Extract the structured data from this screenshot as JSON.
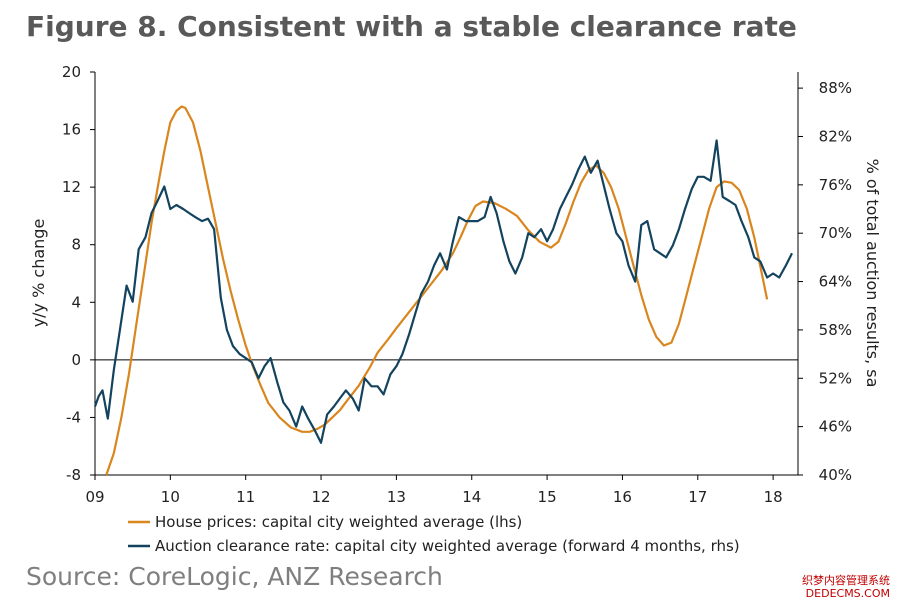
{
  "title": "Figure 8. Consistent with a stable clearance rate",
  "source": "Source: CoreLogic, ANZ Research",
  "watermark": {
    "line1": "织梦内容管理系统",
    "line2": "DEDECMS.COM"
  },
  "colors": {
    "house": "#d9861f",
    "auction": "#13435e",
    "axis": "#000000",
    "title": "#595959"
  },
  "chart_data": {
    "type": "line",
    "xlabel": "",
    "ylabel_left": "y/y % change",
    "ylabel_right": "% of total auction results, sa",
    "ylim_left": [
      -8,
      20
    ],
    "ylim_right": [
      40,
      90
    ],
    "xlim": [
      9.0,
      18.33
    ],
    "x_ticks": [
      9,
      10,
      11,
      12,
      13,
      14,
      15,
      16,
      17,
      18
    ],
    "x_tick_labels": [
      "09",
      "10",
      "11",
      "12",
      "13",
      "14",
      "15",
      "16",
      "17",
      "18"
    ],
    "y_ticks_left": [
      -8,
      -4,
      0,
      4,
      8,
      12,
      16,
      20
    ],
    "y_tick_labels_left": [
      "-8",
      "-4",
      "0",
      "4",
      "8",
      "12",
      "16",
      "20"
    ],
    "y_ticks_right": [
      40,
      46,
      52,
      58,
      64,
      70,
      76,
      82,
      88
    ],
    "y_tick_labels_right": [
      "40%",
      "46%",
      "52%",
      "58%",
      "64%",
      "70%",
      "76%",
      "82%",
      "88%"
    ],
    "grid": false,
    "legend_position": "bottom",
    "series": [
      {
        "name": "House prices: capital city weighted average (lhs)",
        "axis": "left",
        "x": [
          9.15,
          9.25,
          9.35,
          9.45,
          9.55,
          9.65,
          9.75,
          9.85,
          9.92,
          10.0,
          10.08,
          10.15,
          10.2,
          10.3,
          10.4,
          10.5,
          10.6,
          10.7,
          10.8,
          10.9,
          11.0,
          11.1,
          11.2,
          11.3,
          11.45,
          11.6,
          11.75,
          11.85,
          11.95,
          12.05,
          12.15,
          12.25,
          12.35,
          12.5,
          12.65,
          12.75,
          12.9,
          13.0,
          13.15,
          13.3,
          13.45,
          13.6,
          13.75,
          13.85,
          13.95,
          14.05,
          14.15,
          14.3,
          14.45,
          14.6,
          14.75,
          14.9,
          15.05,
          15.15,
          15.25,
          15.35,
          15.45,
          15.55,
          15.65,
          15.75,
          15.85,
          15.95,
          16.05,
          16.15,
          16.25,
          16.35,
          16.45,
          16.55,
          16.65,
          16.75,
          16.85,
          16.95,
          17.05,
          17.15,
          17.25,
          17.35,
          17.45,
          17.55,
          17.65,
          17.75,
          17.85,
          17.92
        ],
        "values": [
          -8.0,
          -6.5,
          -4.0,
          -1.0,
          2.5,
          6.0,
          9.5,
          12.5,
          14.5,
          16.5,
          17.3,
          17.6,
          17.5,
          16.5,
          14.5,
          12.0,
          9.5,
          7.0,
          4.8,
          2.8,
          1.0,
          -0.5,
          -1.8,
          -3.0,
          -4.0,
          -4.7,
          -5.0,
          -5.0,
          -4.8,
          -4.5,
          -4.0,
          -3.5,
          -2.8,
          -1.8,
          -0.5,
          0.5,
          1.5,
          2.2,
          3.2,
          4.2,
          5.2,
          6.2,
          7.4,
          8.5,
          9.7,
          10.7,
          11.0,
          10.9,
          10.5,
          10.0,
          9.0,
          8.2,
          7.8,
          8.2,
          9.5,
          11.0,
          12.3,
          13.2,
          13.5,
          13.0,
          12.0,
          10.5,
          8.5,
          6.5,
          4.5,
          2.8,
          1.6,
          1.0,
          1.2,
          2.5,
          4.5,
          6.5,
          8.5,
          10.5,
          12.0,
          12.4,
          12.3,
          11.8,
          10.5,
          8.5,
          6.0,
          4.2
        ]
      },
      {
        "name": "Auction clearance rate: capital city weighted average (forward 4 months, rhs)",
        "axis": "right",
        "x": [
          9.0,
          9.05,
          9.1,
          9.17,
          9.25,
          9.33,
          9.42,
          9.5,
          9.58,
          9.67,
          9.75,
          9.83,
          9.92,
          10.0,
          10.08,
          10.17,
          10.25,
          10.33,
          10.42,
          10.5,
          10.58,
          10.67,
          10.75,
          10.83,
          10.92,
          11.0,
          11.08,
          11.17,
          11.25,
          11.33,
          11.42,
          11.5,
          11.58,
          11.67,
          11.75,
          11.83,
          11.92,
          12.0,
          12.08,
          12.17,
          12.25,
          12.33,
          12.42,
          12.5,
          12.58,
          12.67,
          12.75,
          12.83,
          12.92,
          13.0,
          13.08,
          13.17,
          13.25,
          13.33,
          13.42,
          13.5,
          13.58,
          13.67,
          13.75,
          13.83,
          13.92,
          14.0,
          14.08,
          14.17,
          14.25,
          14.33,
          14.42,
          14.5,
          14.58,
          14.67,
          14.75,
          14.83,
          14.92,
          15.0,
          15.08,
          15.17,
          15.25,
          15.33,
          15.42,
          15.5,
          15.58,
          15.67,
          15.75,
          15.83,
          15.92,
          16.0,
          16.08,
          16.17,
          16.25,
          16.33,
          16.42,
          16.5,
          16.58,
          16.67,
          16.75,
          16.83,
          16.92,
          17.0,
          17.08,
          17.17,
          17.25,
          17.33,
          17.42,
          17.5,
          17.58,
          17.67,
          17.75,
          17.83,
          17.92,
          18.0,
          18.08,
          18.17,
          18.25
        ],
        "values": [
          48.5,
          49.8,
          50.5,
          47.0,
          53.0,
          58.0,
          63.5,
          61.5,
          68.0,
          69.5,
          72.5,
          74.0,
          75.8,
          73.0,
          73.5,
          73.0,
          72.5,
          72.0,
          71.5,
          71.8,
          70.5,
          62.0,
          58.0,
          56.0,
          55.0,
          54.5,
          54.0,
          52.0,
          53.5,
          54.5,
          51.5,
          49.0,
          48.0,
          46.0,
          48.5,
          47.0,
          45.5,
          44.0,
          47.5,
          48.5,
          49.5,
          50.5,
          49.5,
          48.0,
          52.0,
          51.0,
          51.0,
          50.0,
          52.5,
          53.5,
          55.0,
          57.5,
          60.0,
          62.5,
          64.0,
          66.0,
          67.5,
          65.5,
          69.0,
          72.0,
          71.5,
          71.5,
          71.5,
          72.0,
          74.5,
          72.5,
          69.0,
          66.5,
          65.0,
          67.0,
          70.0,
          69.5,
          70.5,
          69.0,
          70.5,
          73.0,
          74.5,
          76.0,
          78.0,
          79.5,
          77.5,
          79.0,
          76.0,
          73.0,
          70.0,
          69.0,
          66.0,
          64.0,
          71.0,
          71.5,
          68.0,
          67.5,
          67.0,
          68.5,
          70.5,
          73.0,
          75.5,
          77.0,
          77.0,
          76.5,
          81.5,
          74.5,
          74.0,
          73.5,
          71.5,
          69.5,
          67.0,
          66.5,
          64.5,
          65.0,
          64.5,
          66.0,
          67.5
        ]
      }
    ]
  }
}
